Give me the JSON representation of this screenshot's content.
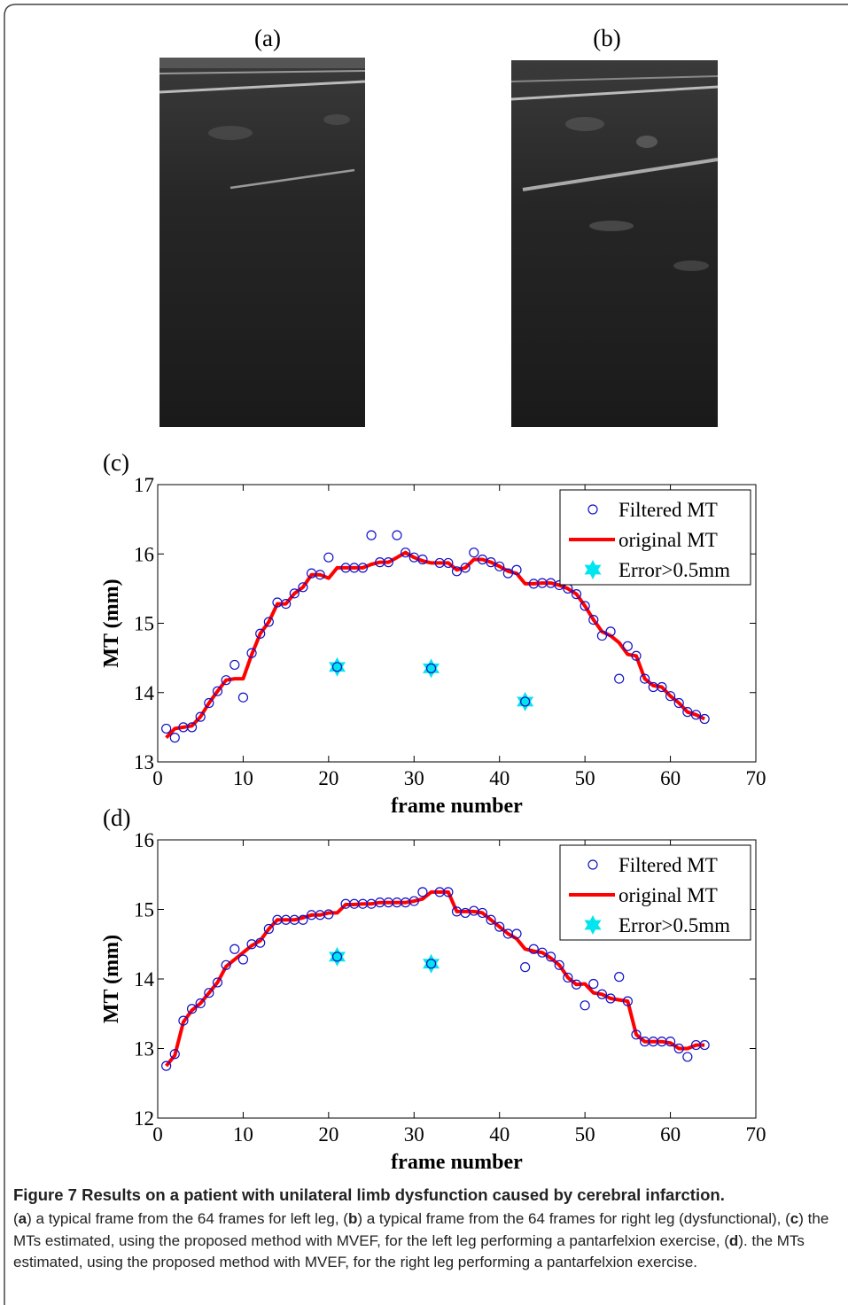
{
  "panels": {
    "a": "(a)",
    "b": "(b)"
  },
  "chart_data": [
    {
      "type": "line",
      "title": "(c)",
      "xlabel": "frame number",
      "ylabel": "MT (mm)",
      "xlim": [
        0,
        70
      ],
      "xticks": [
        0,
        10,
        20,
        30,
        40,
        50,
        60,
        70
      ],
      "ylim": [
        13,
        17
      ],
      "yticks": [
        13,
        14,
        15,
        16,
        17
      ],
      "legend": "upper right",
      "x": [
        1,
        2,
        3,
        4,
        5,
        6,
        7,
        8,
        9,
        10,
        11,
        12,
        13,
        14,
        15,
        16,
        17,
        18,
        19,
        20,
        21,
        22,
        23,
        24,
        25,
        26,
        27,
        28,
        29,
        30,
        31,
        32,
        33,
        34,
        35,
        36,
        37,
        38,
        39,
        40,
        41,
        42,
        43,
        44,
        45,
        46,
        47,
        48,
        49,
        50,
        51,
        52,
        53,
        54,
        55,
        56,
        57,
        58,
        59,
        60,
        61,
        62,
        63,
        64
      ],
      "series": [
        {
          "name": "Filtered MT",
          "color": "#1010c8",
          "marker": "circle",
          "values": [
            13.48,
            13.35,
            13.5,
            13.5,
            13.65,
            13.85,
            14.02,
            14.18,
            14.4,
            13.93,
            14.57,
            14.85,
            15.02,
            15.3,
            15.28,
            15.43,
            15.52,
            15.72,
            15.7,
            15.95,
            14.37,
            15.8,
            15.8,
            15.8,
            16.27,
            15.88,
            15.88,
            16.27,
            16.02,
            15.95,
            15.92,
            14.35,
            15.87,
            15.87,
            15.75,
            15.8,
            16.02,
            15.92,
            15.88,
            15.82,
            15.72,
            15.77,
            13.87,
            15.57,
            15.58,
            15.58,
            15.55,
            15.5,
            15.42,
            15.25,
            15.05,
            14.82,
            14.88,
            14.2,
            14.67,
            14.53,
            14.2,
            14.08,
            14.08,
            13.95,
            13.85,
            13.72,
            13.68,
            13.62
          ]
        },
        {
          "name": "original MT",
          "color": "#ff0000",
          "marker": "none",
          "values": [
            13.35,
            13.48,
            13.5,
            13.52,
            13.65,
            13.85,
            14.02,
            14.18,
            14.2,
            14.2,
            14.55,
            14.85,
            15.02,
            15.28,
            15.28,
            15.43,
            15.52,
            15.7,
            15.7,
            15.65,
            15.8,
            15.8,
            15.8,
            15.8,
            15.85,
            15.88,
            15.88,
            15.95,
            16.02,
            15.95,
            15.9,
            15.87,
            15.87,
            15.87,
            15.77,
            15.8,
            15.92,
            15.92,
            15.88,
            15.82,
            15.75,
            15.72,
            15.57,
            15.57,
            15.58,
            15.58,
            15.55,
            15.5,
            15.42,
            15.25,
            15.05,
            14.88,
            14.82,
            14.72,
            14.55,
            14.53,
            14.2,
            14.1,
            14.08,
            13.95,
            13.85,
            13.72,
            13.68,
            13.62
          ]
        },
        {
          "name": "Error>0.5mm",
          "color": "#00e5ee",
          "marker": "hexagram",
          "x": [
            21,
            32,
            43
          ],
          "values": [
            14.37,
            14.35,
            13.87
          ]
        }
      ]
    },
    {
      "type": "line",
      "title": "(d)",
      "xlabel": "frame number",
      "ylabel": "MT (mm)",
      "xlim": [
        0,
        70
      ],
      "xticks": [
        0,
        10,
        20,
        30,
        40,
        50,
        60,
        70
      ],
      "ylim": [
        12,
        16
      ],
      "yticks": [
        12,
        13,
        14,
        15,
        16
      ],
      "legend": "upper right",
      "x": [
        1,
        2,
        3,
        4,
        5,
        6,
        7,
        8,
        9,
        10,
        11,
        12,
        13,
        14,
        15,
        16,
        17,
        18,
        19,
        20,
        21,
        22,
        23,
        24,
        25,
        26,
        27,
        28,
        29,
        30,
        31,
        32,
        33,
        34,
        35,
        36,
        37,
        38,
        39,
        40,
        41,
        42,
        43,
        44,
        45,
        46,
        47,
        48,
        49,
        50,
        51,
        52,
        53,
        54,
        55,
        56,
        57,
        58,
        59,
        60,
        61,
        62,
        63,
        64
      ],
      "series": [
        {
          "name": "Filtered MT",
          "color": "#1010c8",
          "marker": "circle",
          "values": [
            12.75,
            12.92,
            13.4,
            13.57,
            13.65,
            13.8,
            13.95,
            14.2,
            14.43,
            14.28,
            14.5,
            14.52,
            14.72,
            14.85,
            14.85,
            14.85,
            14.85,
            14.92,
            14.92,
            14.93,
            14.32,
            15.08,
            15.08,
            15.08,
            15.08,
            15.1,
            15.1,
            15.1,
            15.1,
            15.12,
            15.25,
            14.22,
            15.25,
            15.25,
            14.97,
            14.95,
            14.98,
            14.95,
            14.85,
            14.75,
            14.65,
            14.65,
            14.17,
            14.43,
            14.38,
            14.32,
            14.2,
            14.02,
            13.92,
            13.62,
            13.93,
            13.78,
            13.72,
            14.03,
            13.68,
            13.2,
            13.1,
            13.1,
            13.1,
            13.1,
            13.0,
            12.88,
            13.05,
            13.05
          ]
        },
        {
          "name": "original MT",
          "color": "#ff0000",
          "marker": "none",
          "values": [
            12.75,
            12.9,
            13.38,
            13.55,
            13.65,
            13.8,
            13.95,
            14.18,
            14.28,
            14.38,
            14.48,
            14.55,
            14.72,
            14.85,
            14.85,
            14.85,
            14.88,
            14.92,
            14.92,
            14.95,
            14.95,
            15.07,
            15.07,
            15.08,
            15.08,
            15.1,
            15.1,
            15.1,
            15.1,
            15.12,
            15.15,
            15.25,
            15.25,
            15.25,
            14.97,
            14.97,
            14.97,
            14.95,
            14.85,
            14.75,
            14.65,
            14.58,
            14.43,
            14.4,
            14.38,
            14.3,
            14.2,
            14.02,
            13.92,
            13.93,
            13.8,
            13.78,
            13.72,
            13.7,
            13.68,
            13.2,
            13.1,
            13.1,
            13.1,
            13.08,
            13.0,
            13.0,
            13.05,
            13.05
          ]
        },
        {
          "name": "Error>0.5mm",
          "color": "#00e5ee",
          "marker": "hexagram",
          "x": [
            21,
            32
          ],
          "values": [
            14.32,
            14.22
          ]
        }
      ]
    }
  ],
  "caption": {
    "title": "Figure 7 Results on a patient with unilateral limb dysfunction caused by cerebral infarction.",
    "parts": [
      "(",
      "a",
      ") a typical frame from the 64 frames for left leg, (",
      "b",
      ") a typical frame from the 64 frames for right leg (dysfunctional), (",
      "c",
      ") the MTs estimated, using the proposed method with MVEF, for the left leg performing a pantarfelxion exercise, (",
      "d",
      "). the MTs estimated, using the proposed method with MVEF, for the right leg performing a pantarfelxion exercise."
    ]
  }
}
